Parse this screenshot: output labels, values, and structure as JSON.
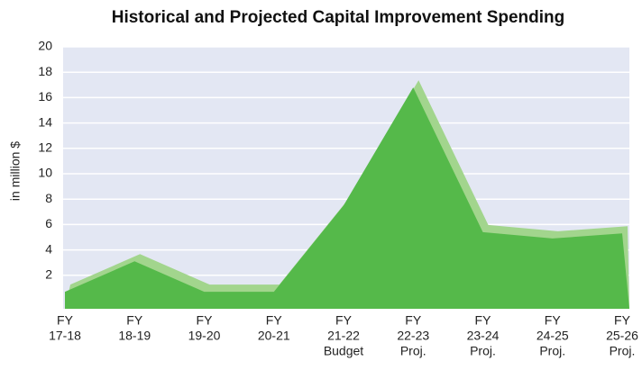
{
  "chart_data": {
    "type": "area",
    "title": "Historical and Projected Capital Improvement Spending",
    "y_label": "in million $",
    "categories": [
      [
        "FY",
        "17-18"
      ],
      [
        "FY",
        "18-19"
      ],
      [
        "FY",
        "19-20"
      ],
      [
        "FY",
        "20-21"
      ],
      [
        "FY",
        "21-22",
        "Budget"
      ],
      [
        "FY",
        "22-23",
        "Proj."
      ],
      [
        "FY",
        "23-24",
        "Proj."
      ],
      [
        "FY",
        "24-25",
        "Proj."
      ],
      [
        "FY",
        "25-26",
        "Proj."
      ]
    ],
    "values": [
      0.7,
      3.1,
      0.7,
      0.7,
      7.5,
      16.8,
      5.4,
      4.9,
      5.3
    ],
    "color": "#55b94a",
    "top_color": "#a2d58d",
    "ylim": [
      0,
      20
    ],
    "yticks": [
      2,
      4,
      6,
      8,
      10,
      12,
      14,
      16,
      18,
      20
    ],
    "grid": true
  }
}
